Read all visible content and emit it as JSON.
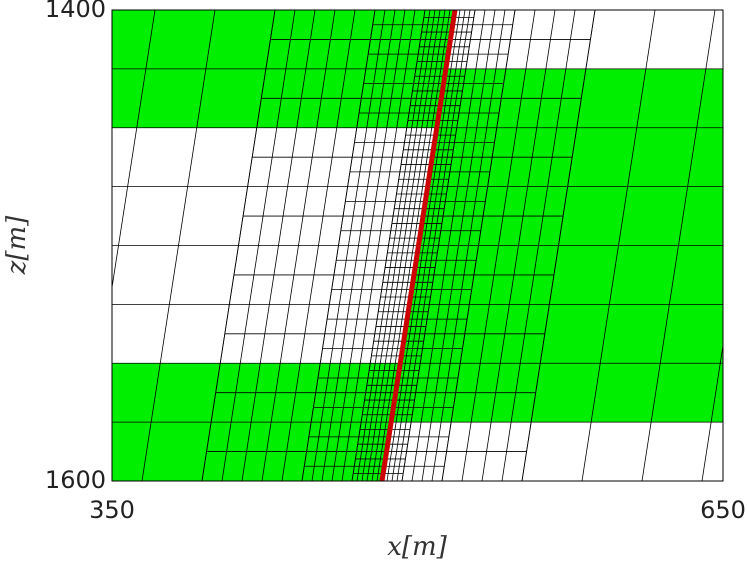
{
  "chart_data": {
    "type": "mesh",
    "xlabel": "x[m]",
    "ylabel": "z[m]",
    "xlim": [
      350,
      650
    ],
    "ylim": [
      1400,
      1600
    ],
    "y_inverted": true,
    "xticks": [
      350,
      650
    ],
    "yticks": [
      1400,
      1600
    ]
  }
}
